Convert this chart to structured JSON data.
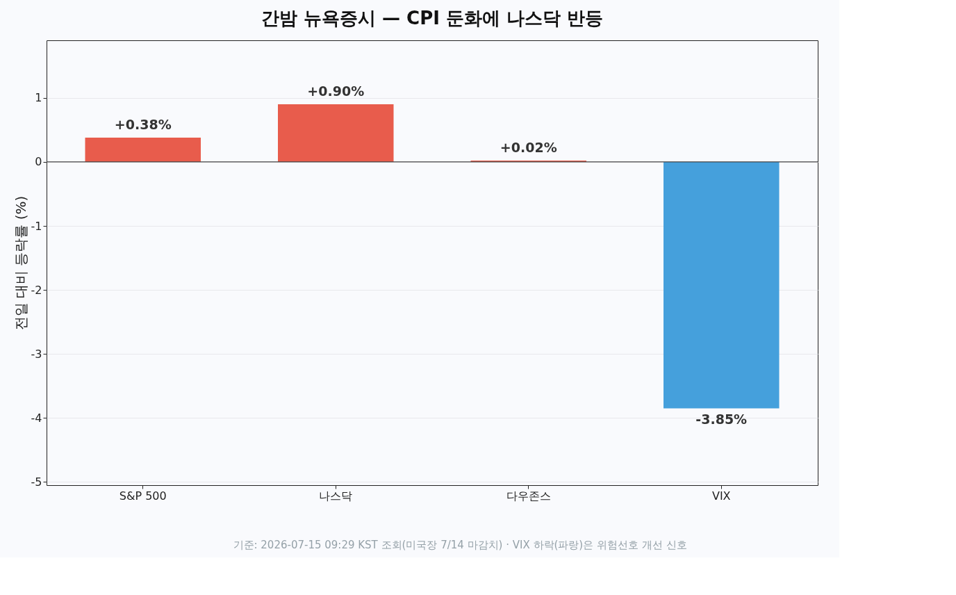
{
  "chart_data": {
    "type": "bar",
    "title": "간밤 뉴욕증시 — CPI 둔화에 나스닥 반등",
    "ylabel": "전일 대비 등락률 (%)",
    "categories": [
      "S&P 500",
      "나스닥",
      "다우존스",
      "VIX"
    ],
    "values": [
      0.38,
      0.9,
      0.02,
      -3.85
    ],
    "colors": [
      "#e85c4c",
      "#e85c4c",
      "#e85c4c",
      "#45a0dc"
    ],
    "value_labels": [
      "+0.38%",
      "+0.90%",
      "+0.02%",
      "-3.85%"
    ],
    "ylim": [
      -5.05,
      1.9
    ],
    "yticks": [
      1,
      0,
      -1,
      -2,
      -3,
      -4,
      -5
    ],
    "ref_lines": [
      {
        "axis": "y",
        "value": 0,
        "color": "#444444"
      }
    ],
    "grid": "y",
    "annotations": [
      "기준: 2026-07-15 09:29 KST 조회(미국장 7/14 마감치) · VIX 하락(파랑)은 위험선호 개선 신호"
    ]
  }
}
